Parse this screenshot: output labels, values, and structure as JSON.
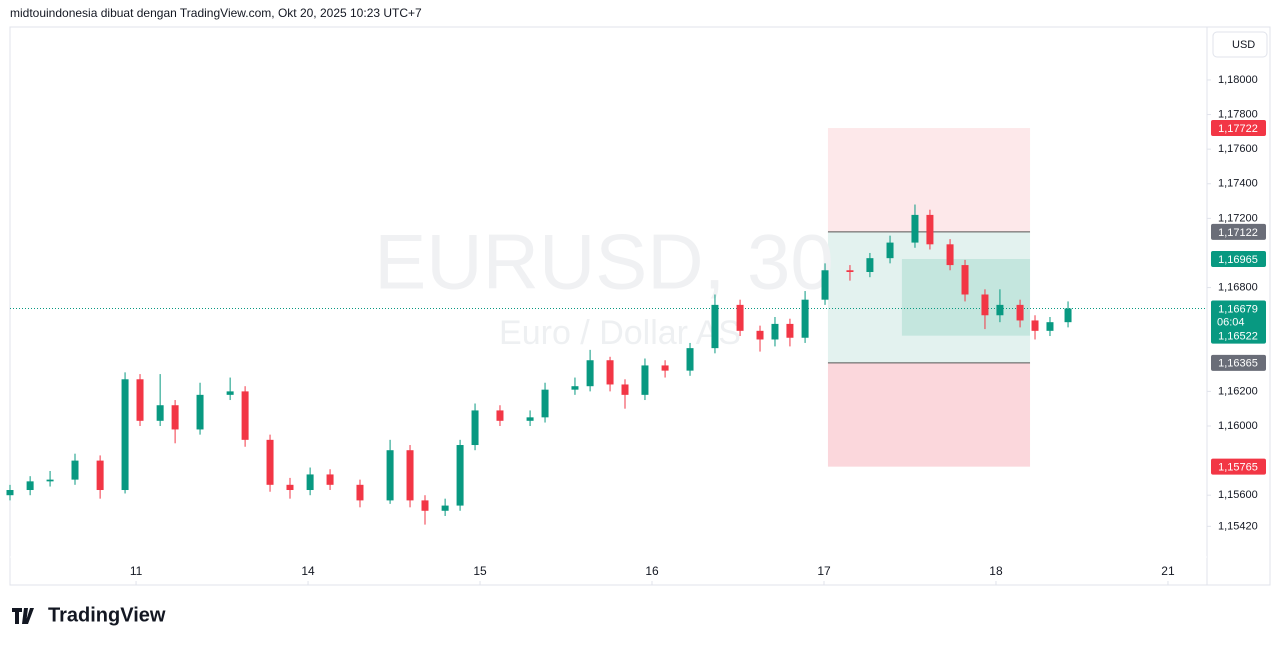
{
  "header": "midtouindonesia dibuat dengan TradingView.com, Okt 20, 2025 10:23 UTC+7",
  "currency_button": "USD",
  "logo": "TradingView",
  "chart_data": {
    "type": "candlestick",
    "watermark": "EURUSD, 30",
    "watermark_subtitle": "Euro / Dollar AS",
    "up_color": "#089981",
    "down_color": "#f23645",
    "x": [
      -0.733,
      -0.616,
      -0.5,
      -0.355,
      -0.209,
      -0.064,
      0.023,
      0.14,
      0.227,
      0.372,
      0.547,
      0.634,
      0.779,
      0.895,
      1.012,
      1.128,
      1.302,
      1.477,
      1.593,
      1.68,
      1.797,
      1.884,
      1.971,
      2.116,
      2.291,
      2.378,
      2.552,
      2.64,
      2.756,
      2.843,
      2.959,
      3.076,
      3.221,
      3.366,
      3.512,
      3.628,
      3.715,
      3.802,
      3.89,
      4.006,
      4.151,
      4.267,
      4.384,
      4.529,
      4.616,
      4.733,
      4.82,
      4.936,
      5.023,
      5.14,
      5.227,
      5.314,
      5.419
    ],
    "open": [
      1.156,
      1.1563,
      1.1568,
      1.1569,
      1.158,
      1.1563,
      1.1627,
      1.1603,
      1.1612,
      1.1598,
      1.1618,
      1.162,
      1.1592,
      1.1566,
      1.1563,
      1.1572,
      1.1566,
      1.1557,
      1.1586,
      1.1557,
      1.1551,
      1.1554,
      1.1589,
      1.1609,
      1.1603,
      1.1605,
      1.1621,
      1.1623,
      1.1638,
      1.1624,
      1.1618,
      1.1635,
      1.1632,
      1.1645,
      1.167,
      1.1655,
      1.165,
      1.1659,
      1.1651,
      1.1673,
      1.169,
      1.1689,
      1.1697,
      1.1706,
      1.1722,
      1.1705,
      1.1693,
      1.1676,
      1.1664,
      1.167,
      1.1661,
      1.1655,
      1.166
    ],
    "high": [
      1.1566,
      1.1571,
      1.1574,
      1.1584,
      1.1583,
      1.1631,
      1.163,
      1.163,
      1.1615,
      1.1625,
      1.1628,
      1.1623,
      1.1595,
      1.157,
      1.1576,
      1.1575,
      1.1569,
      1.1592,
      1.1589,
      1.156,
      1.1558,
      1.1592,
      1.1613,
      1.1612,
      1.1609,
      1.1625,
      1.1628,
      1.1644,
      1.164,
      1.1627,
      1.1639,
      1.1638,
      1.1648,
      1.1676,
      1.1673,
      1.1658,
      1.1663,
      1.1662,
      1.1678,
      1.1694,
      1.1693,
      1.17,
      1.171,
      1.1728,
      1.1725,
      1.1708,
      1.1696,
      1.1679,
      1.1679,
      1.1673,
      1.1664,
      1.1663,
      1.1672
    ],
    "low": [
      1.1557,
      1.156,
      1.1565,
      1.1566,
      1.1558,
      1.1561,
      1.16,
      1.16,
      1.159,
      1.1595,
      1.1615,
      1.1588,
      1.1562,
      1.1558,
      1.156,
      1.1563,
      1.1553,
      1.1555,
      1.1553,
      1.1543,
      1.1548,
      1.1551,
      1.1586,
      1.16,
      1.16,
      1.1602,
      1.1618,
      1.162,
      1.162,
      1.161,
      1.1615,
      1.1628,
      1.1629,
      1.1642,
      1.1652,
      1.1643,
      1.1646,
      1.1646,
      1.1648,
      1.167,
      1.1684,
      1.1686,
      1.1694,
      1.1703,
      1.1702,
      1.169,
      1.1672,
      1.1656,
      1.166,
      1.1657,
      1.165,
      1.1652,
      1.1657
    ],
    "close": [
      1.1563,
      1.1568,
      1.1569,
      1.158,
      1.1563,
      1.1627,
      1.1603,
      1.1612,
      1.1598,
      1.1618,
      1.162,
      1.1592,
      1.1566,
      1.1563,
      1.1572,
      1.1566,
      1.1557,
      1.1586,
      1.1557,
      1.1551,
      1.1554,
      1.1589,
      1.1609,
      1.1603,
      1.1605,
      1.1621,
      1.1623,
      1.1638,
      1.1624,
      1.1618,
      1.1635,
      1.1632,
      1.1645,
      1.167,
      1.1655,
      1.165,
      1.1659,
      1.1651,
      1.1673,
      1.169,
      1.1689,
      1.1697,
      1.1706,
      1.1722,
      1.1705,
      1.1693,
      1.1676,
      1.1664,
      1.167,
      1.1661,
      1.1655,
      1.166,
      1.16679
    ],
    "xlim": [
      -0.733,
      6.227
    ],
    "xticks": [
      {
        "value": 0,
        "label": "11"
      },
      {
        "value": 1,
        "label": "14"
      },
      {
        "value": 2,
        "label": "15"
      },
      {
        "value": 3,
        "label": "16"
      },
      {
        "value": 4,
        "label": "17"
      },
      {
        "value": 5,
        "label": "18"
      },
      {
        "value": 6,
        "label": "21"
      }
    ],
    "ylim": [
      1.15081,
      1.18306
    ],
    "yticks": [
      {
        "value": 1.18,
        "label": "1,18000"
      },
      {
        "value": 1.178,
        "label": "1,17800"
      },
      {
        "value": 1.176,
        "label": "1,17600"
      },
      {
        "value": 1.174,
        "label": "1,17400"
      },
      {
        "value": 1.172,
        "label": "1,17200"
      },
      {
        "value": 1.168,
        "label": "1,16800"
      },
      {
        "value": 1.162,
        "label": "1,16200"
      },
      {
        "value": 1.16,
        "label": "1,16000"
      },
      {
        "value": 1.156,
        "label": "1,15600"
      },
      {
        "value": 1.1542,
        "label": "1,15420"
      }
    ],
    "zones": [
      {
        "x": [
          4.023,
          5.198
        ],
        "y": [
          1.17722,
          1.17122
        ],
        "color": "#fde8ea"
      },
      {
        "x": [
          4.023,
          5.198
        ],
        "y": [
          1.17122,
          1.16365
        ],
        "color": "#e3f2ef"
      },
      {
        "x": [
          4.453,
          5.198
        ],
        "y": [
          1.16965,
          1.16522
        ],
        "color": "#c4e6de"
      },
      {
        "x": [
          4.023,
          5.198
        ],
        "y": [
          1.16365,
          1.15765
        ],
        "color": "#fbd7dc"
      }
    ],
    "current_price": {
      "value": 1.16679,
      "label": "1,16679",
      "countdown": "06:04",
      "color": "#089981"
    },
    "price_labels": [
      {
        "value": 1.17722,
        "label": "1,17722",
        "color": "#f23645"
      },
      {
        "value": 1.17122,
        "label": "1,17122",
        "color": "#6a6d78"
      },
      {
        "value": 1.16965,
        "label": "1,16965",
        "color": "#089981"
      },
      {
        "value": 1.16522,
        "label": "1,16522",
        "color": "#089981"
      },
      {
        "value": 1.16365,
        "label": "1,16365",
        "color": "#6a6d78"
      },
      {
        "value": 1.15765,
        "label": "1,15765",
        "color": "#f23645"
      }
    ]
  }
}
